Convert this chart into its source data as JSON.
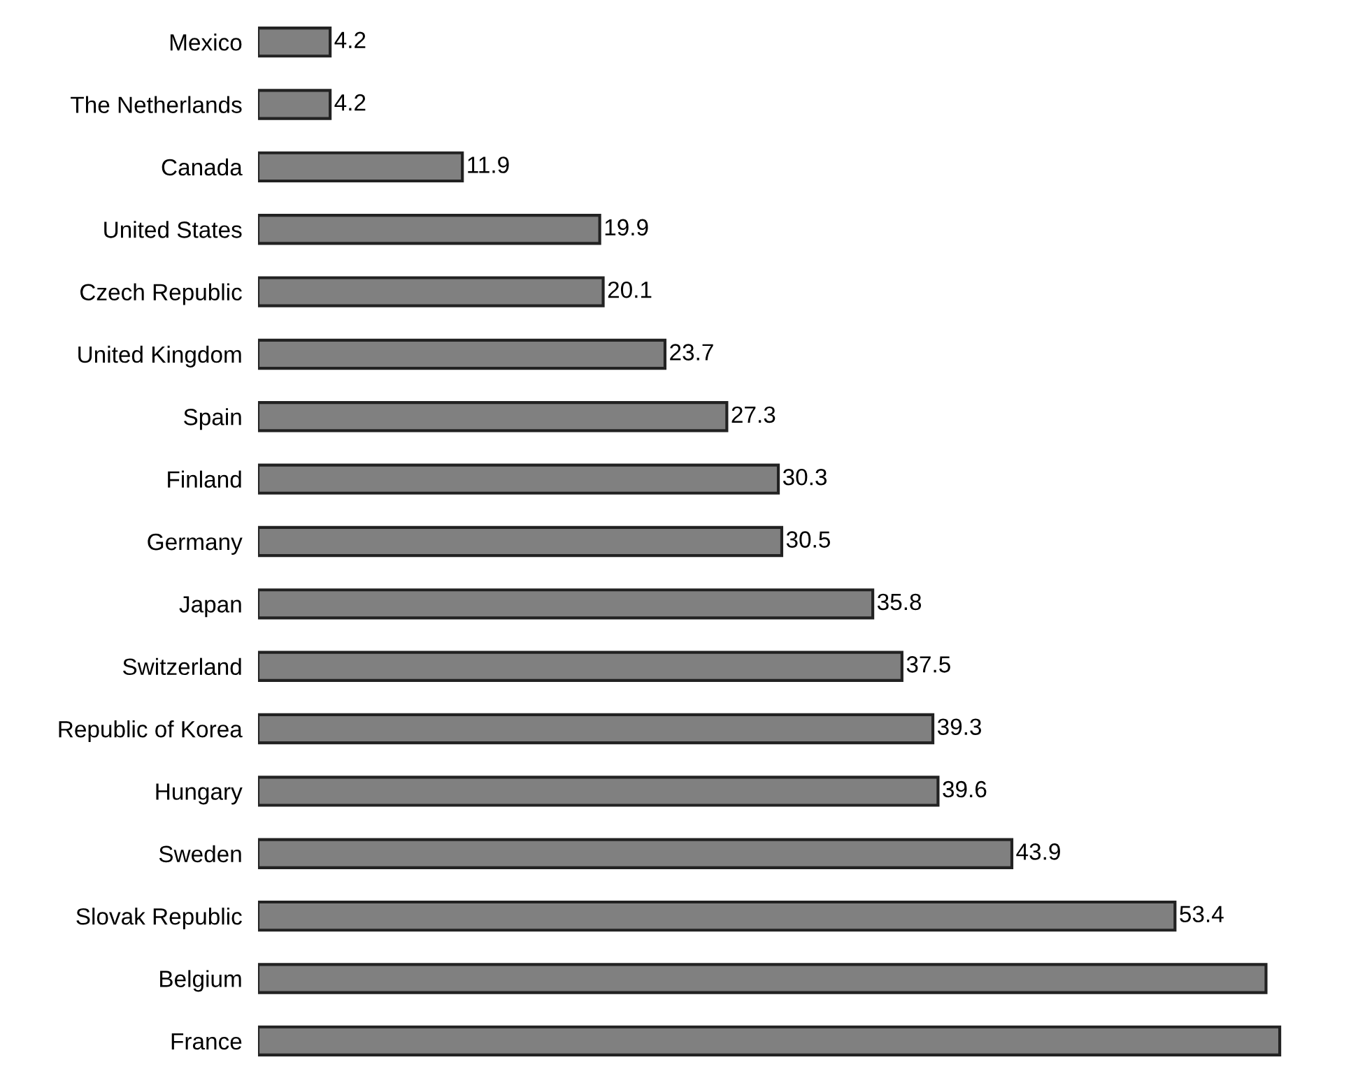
{
  "chart_data": {
    "type": "bar",
    "orientation": "horizontal",
    "categories": [
      "Mexico",
      "The Netherlands",
      "Canada",
      "United States",
      "Czech Republic",
      "United Kingdom",
      "Spain",
      "Finland",
      "Germany",
      "Japan",
      "Switzerland",
      "Republic of Korea",
      "Hungary",
      "Sweden",
      "Slovak Republic",
      "Belgium",
      "France"
    ],
    "values": [
      4.2,
      4.2,
      11.9,
      19.9,
      20.1,
      23.7,
      27.3,
      30.3,
      30.5,
      35.8,
      37.5,
      39.3,
      39.6,
      43.9,
      53.4,
      58.7,
      59.5
    ],
    "value_labels": [
      "4.2",
      "4.2",
      "11.9",
      "19.9",
      "20.1",
      "23.7",
      "27.3",
      "30.3",
      "30.5",
      "35.8",
      "37.5",
      "39.3",
      "39.6",
      "43.9",
      "53.4",
      null,
      null
    ],
    "color": "#808080",
    "grid": false,
    "legend": false
  }
}
